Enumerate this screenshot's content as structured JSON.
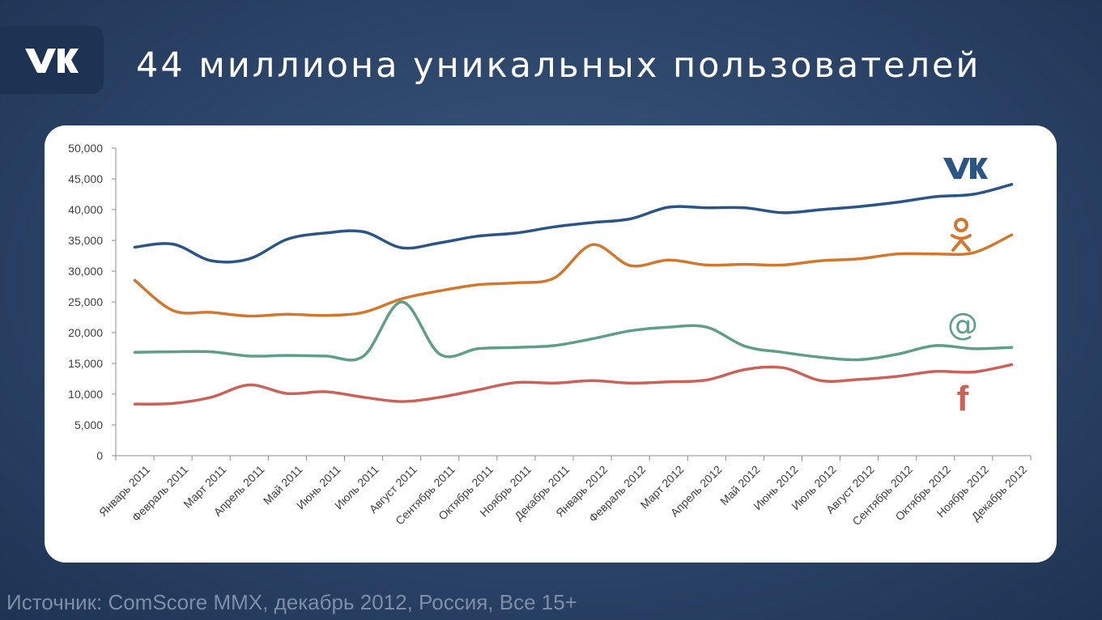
{
  "header": {
    "title": "44 миллиона уникальных пользователей"
  },
  "source": "Источник: ComScore MMX, декабрь 2012, Россия, Все 15+",
  "colors": {
    "vk": "#2a5585",
    "odnoklassniki": "#d2782c",
    "mailru": "#5f9e87",
    "facebook": "#cb625a"
  },
  "chart_data": {
    "type": "line",
    "title": "",
    "xlabel": "",
    "ylabel": "",
    "ylim": [
      0,
      50000
    ],
    "yticks": [
      "0",
      "5,000",
      "10,000",
      "15,000",
      "20,000",
      "25,000",
      "30,000",
      "35,000",
      "40,000",
      "45,000",
      "50,000"
    ],
    "categories": [
      "Январь 2011",
      "Февраль 2011",
      "Март 2011",
      "Апрель 2011",
      "Май 2011",
      "Июнь 2011",
      "Июль 2011",
      "Август 2011",
      "Сентябрь 2011",
      "Октябрь 2011",
      "Ноябрь 2011",
      "Декабрь 2011",
      "Январь 2012",
      "Февраль 2012",
      "Март 2012",
      "Апрель 2012",
      "Май 2012",
      "Июнь 2012",
      "Июль 2012",
      "Август 2012",
      "Сентябрь 2012",
      "Октябрь 2012",
      "Ноябрь 2012",
      "Декабрь 2012"
    ],
    "series": [
      {
        "key": "vk",
        "icon": "vk-icon",
        "values": [
          33900,
          34400,
          31700,
          32000,
          35200,
          36200,
          36400,
          33800,
          34600,
          35700,
          36200,
          37200,
          37900,
          38500,
          40400,
          40300,
          40300,
          39500,
          40000,
          40500,
          41200,
          42100,
          42500,
          44100
        ]
      },
      {
        "key": "odnoklassniki",
        "icon": "odnoklassniki-icon",
        "values": [
          28500,
          23600,
          23300,
          22700,
          23000,
          22800,
          23300,
          25500,
          26800,
          27800,
          28100,
          28900,
          34300,
          30900,
          31800,
          31000,
          31100,
          31000,
          31700,
          32000,
          32800,
          32800,
          33000,
          35900
        ]
      },
      {
        "key": "mailru",
        "icon": "at-sign-icon",
        "values": [
          16800,
          16900,
          16900,
          16200,
          16300,
          16200,
          16200,
          25000,
          16500,
          17400,
          17600,
          17900,
          19000,
          20300,
          20900,
          20900,
          17800,
          16800,
          16000,
          15600,
          16500,
          17900,
          17400,
          17600
        ]
      },
      {
        "key": "facebook",
        "icon": "facebook-icon",
        "values": [
          8400,
          8500,
          9500,
          11500,
          10100,
          10400,
          9500,
          8800,
          9500,
          10700,
          11900,
          11800,
          12200,
          11800,
          12000,
          12300,
          14000,
          14300,
          12200,
          12400,
          12900,
          13700,
          13600,
          14800
        ]
      }
    ]
  }
}
